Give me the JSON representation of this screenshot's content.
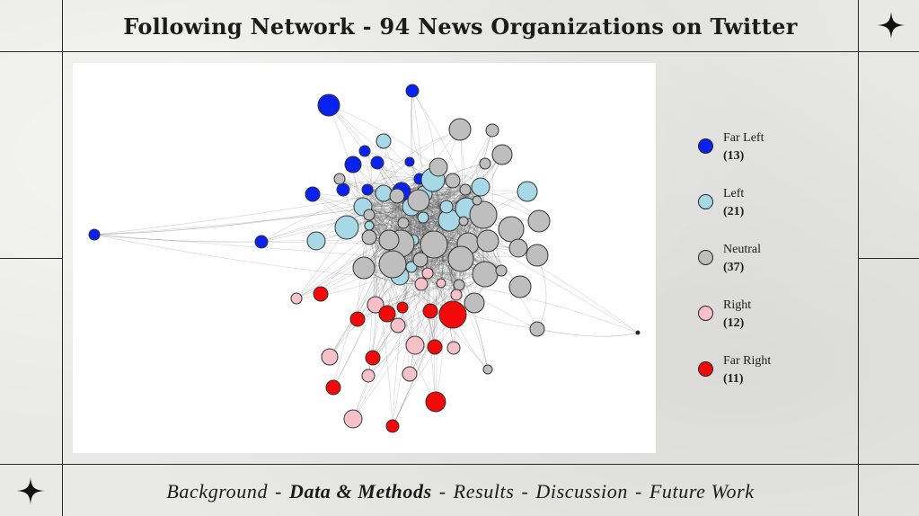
{
  "title": "Following Network - 94 News Organizations on Twitter",
  "legend": [
    {
      "label": "Far Left",
      "count": "(13)",
      "color": "#0a22f0"
    },
    {
      "label": "Left",
      "count": "(21)",
      "color": "#a6d8e6"
    },
    {
      "label": "Neutral",
      "count": "(37)",
      "color": "#bebebe"
    },
    {
      "label": "Right",
      "count": "(12)",
      "color": "#f6c0c8"
    },
    {
      "label": "Far Right",
      "count": "(11)",
      "color": "#f00a0a"
    }
  ],
  "nav": {
    "items": [
      "Background",
      "Data & Methods",
      "Results",
      "Discussion",
      "Future Work"
    ],
    "active": "Data & Methods",
    "separator": "-"
  },
  "icons": {
    "star": "four-point-star-icon"
  }
}
